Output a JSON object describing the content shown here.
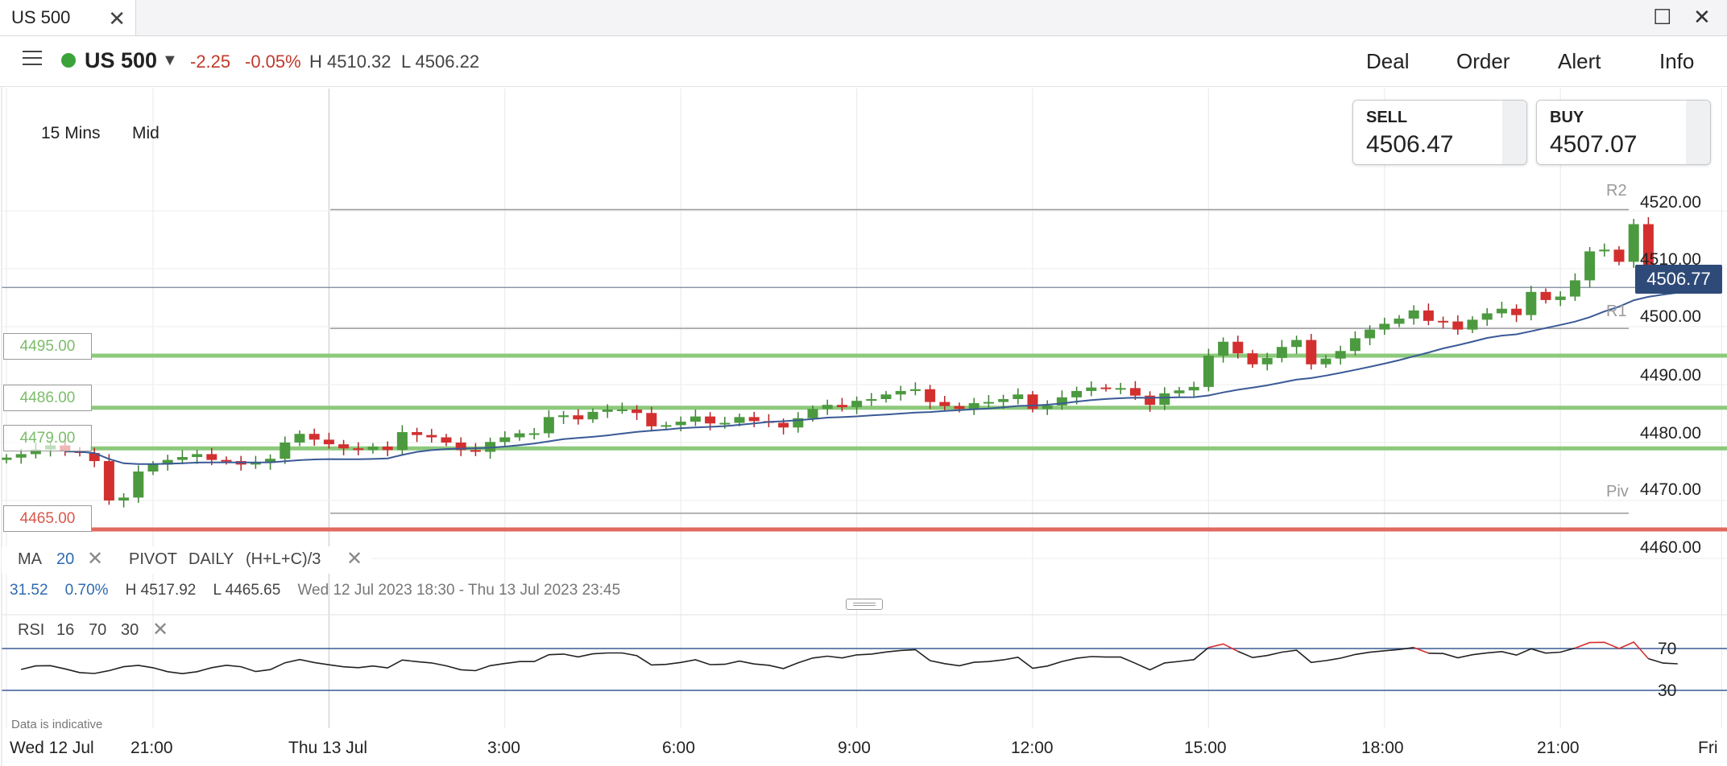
{
  "window": {
    "tab_title": "US 500",
    "close_glyph": "✕",
    "maximize_glyph": "☐",
    "window_close_glyph": "✕"
  },
  "header": {
    "symbol": "US 500",
    "status_color": "#3aa33a",
    "change": "-2.25",
    "change_pct": "-0.05%",
    "high": "H 4510.32",
    "low": "L 4506.22",
    "menu": [
      "Deal",
      "Order",
      "Alert",
      "Info"
    ]
  },
  "toolbar": {
    "timeframe": "15 Mins",
    "price_type": "Mid"
  },
  "quote": {
    "sell_label": "SELL",
    "sell_price": "4506.47",
    "buy_label": "BUY",
    "buy_price": "4507.07"
  },
  "indicators": {
    "ma_label": "MA",
    "ma_period": "20",
    "pivot_label": "PIVOT",
    "pivot_period": "DAILY",
    "pivot_formula": "(H+L+C)/3",
    "rsi_label": "RSI",
    "rsi_period": "16",
    "rsi_upper": "70",
    "rsi_lower": "30"
  },
  "stats": {
    "change": "31.52",
    "change_pct": "0.70%",
    "high": "H 4517.92",
    "low": "L 4465.65",
    "range": "Wed 12 Jul 2023 18:30 - Thu 13 Jul 2023 23:45"
  },
  "note": "Data is indicative",
  "current_price": "4506.77",
  "chart_data": {
    "type": "candlestick",
    "interval": "15 Mins",
    "y_ticks": [
      "4460.00",
      "4470.00",
      "4480.00",
      "4490.00",
      "4500.00",
      "4510.00",
      "4520.00"
    ],
    "ylim": [
      4456,
      4533
    ],
    "x_ticks": [
      {
        "label": "Wed 12 Jul",
        "bar": 0
      },
      {
        "label": "21:00",
        "bar": 10
      },
      {
        "label": "Thu 13 Jul",
        "bar": 22
      },
      {
        "label": "3:00",
        "bar": 34
      },
      {
        "label": "6:00",
        "bar": 46
      },
      {
        "label": "9:00",
        "bar": 58
      },
      {
        "label": "12:00",
        "bar": 70
      },
      {
        "label": "15:00",
        "bar": 82
      },
      {
        "label": "18:00",
        "bar": 94
      },
      {
        "label": "21:00",
        "bar": 106
      },
      {
        "label": "Fri",
        "bar": 117
      }
    ],
    "pivots": [
      {
        "name": "R2",
        "value": 4520.2
      },
      {
        "name": "R1",
        "value": 4499.7
      },
      {
        "name": "Piv",
        "value": 4467.8
      }
    ],
    "price_levels": [
      {
        "label": "4495.00",
        "value": 4495.0,
        "color": "#8cc97b"
      },
      {
        "label": "4486.00",
        "value": 4486.0,
        "color": "#8cc97b"
      },
      {
        "label": "4479.00",
        "value": 4479.0,
        "color": "#8cc97b"
      },
      {
        "label": "4465.00",
        "value": 4465.0,
        "color": "#e06a5f"
      }
    ],
    "current_price": 4506.77,
    "closes": [
      4477.4,
      4478.0,
      4478.8,
      4479.5,
      4478.6,
      4478.2,
      4476.8,
      4470.0,
      4470.5,
      4475.0,
      4476.2,
      4477.0,
      4477.5,
      4478.0,
      4477.0,
      4476.8,
      4476.2,
      4476.5,
      4477.2,
      4480.0,
      4481.5,
      4480.5,
      4479.7,
      4479.0,
      4478.7,
      4479.3,
      4478.7,
      4481.8,
      4481.3,
      4480.9,
      4480.0,
      4478.7,
      4478.4,
      4480.1,
      4480.9,
      4481.6,
      4481.6,
      4484.4,
      4484.7,
      4484.0,
      4485.3,
      4485.7,
      4485.7,
      4485.1,
      4482.8,
      4483.0,
      4483.6,
      4484.5,
      4483.3,
      4483.4,
      4484.4,
      4483.7,
      4483.4,
      4482.6,
      4484.2,
      4485.8,
      4486.5,
      4486.1,
      4487.2,
      4487.5,
      4488.3,
      4488.9,
      4489.2,
      4487.0,
      4486.3,
      4485.8,
      4486.8,
      4487.0,
      4487.5,
      4488.3,
      4485.8,
      4486.4,
      4487.8,
      4488.9,
      4489.5,
      4489.4,
      4489.4,
      4488.1,
      4486.5,
      4488.5,
      4489.0,
      4489.6,
      4495.0,
      4497.4,
      4495.4,
      4493.5,
      4494.6,
      4496.5,
      4497.7,
      4493.5,
      4494.5,
      4495.8,
      4498.0,
      4499.5,
      4500.5,
      4501.4,
      4502.8,
      4501.0,
      4500.9,
      4499.5,
      4501.2,
      4502.3,
      4503.1,
      4502.0,
      4506.0,
      4504.6,
      4505.2,
      4508.0,
      4513.0,
      4513.3,
      4511.2,
      4517.7,
      4509.9,
      4507.2,
      4506.8
    ],
    "ma_color": "#3a5a96",
    "rsi_upper": 70,
    "rsi_lower": 30
  }
}
